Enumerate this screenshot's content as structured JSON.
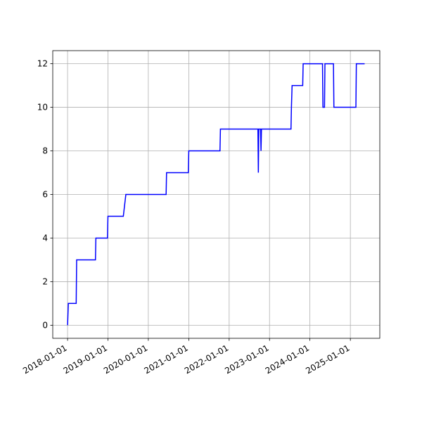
{
  "chart_data": {
    "type": "line",
    "x": [
      "2018-01-01",
      "2018-01-08",
      "2018-03-20",
      "2018-03-24",
      "2018-09-10",
      "2018-09-14",
      "2018-12-28",
      "2019-01-01",
      "2019-05-20",
      "2019-06-12",
      "2020-06-10",
      "2020-06-14",
      "2020-12-28",
      "2021-01-01",
      "2021-10-10",
      "2021-10-14",
      "2022-09-18",
      "2022-09-22",
      "2022-09-26",
      "2022-10-12",
      "2022-10-16",
      "2022-10-20",
      "2023-07-14",
      "2023-07-18",
      "2023-07-24",
      "2023-10-28",
      "2023-11-01",
      "2024-04-24",
      "2024-04-28",
      "2024-05-12",
      "2024-05-16",
      "2024-08-01",
      "2024-08-05",
      "2025-02-20",
      "2025-02-24",
      "2025-05-10"
    ],
    "series": [
      {
        "color": "#0000ff",
        "values": [
          0,
          1,
          1,
          3,
          3,
          4,
          4,
          5,
          5,
          6,
          6,
          7,
          7,
          8,
          8,
          9,
          9,
          7,
          9,
          9,
          8,
          9,
          9,
          10,
          11,
          11,
          12,
          12,
          10,
          10,
          12,
          12,
          10,
          10,
          12,
          12
        ]
      }
    ],
    "xlim": [
      "2017-08-20",
      "2025-09-24"
    ],
    "xticks": [
      "2018-01-01",
      "2019-01-01",
      "2020-01-01",
      "2021-01-01",
      "2022-01-01",
      "2023-01-01",
      "2024-01-01",
      "2025-01-01"
    ],
    "ylim": [
      -0.6,
      12.6
    ],
    "yticks": [
      0,
      2,
      4,
      6,
      8,
      10,
      12
    ],
    "grid": true
  }
}
